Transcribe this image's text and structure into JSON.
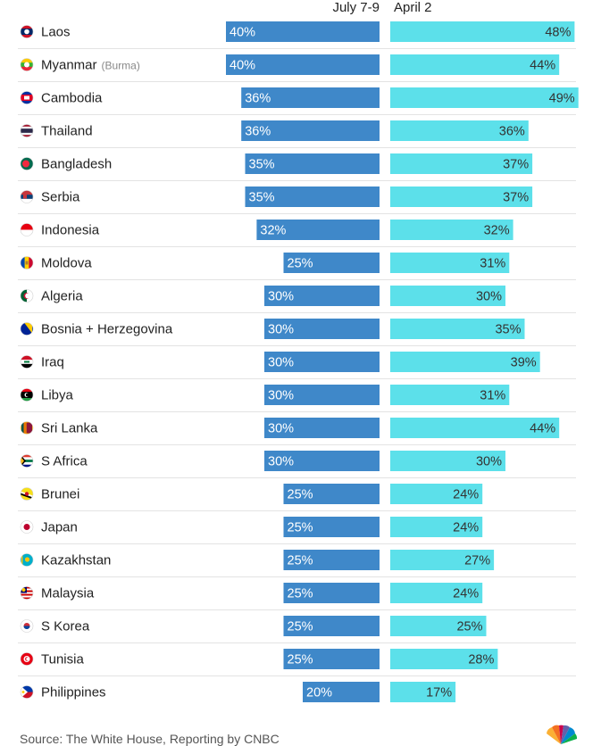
{
  "chart_data": {
    "type": "bar",
    "series": [
      {
        "name": "July 7-9",
        "values": [
          40,
          40,
          36,
          36,
          35,
          35,
          32,
          25,
          30,
          30,
          30,
          30,
          30,
          30,
          25,
          25,
          25,
          25,
          25,
          25,
          20
        ],
        "color": "#3f88c9"
      },
      {
        "name": "April 2",
        "values": [
          48,
          44,
          49,
          36,
          37,
          37,
          32,
          31,
          30,
          35,
          39,
          31,
          44,
          30,
          24,
          24,
          27,
          24,
          25,
          28,
          17
        ],
        "color": "#5ce0ea"
      }
    ],
    "categories": [
      "Laos",
      "Myanmar",
      "Cambodia",
      "Thailand",
      "Bangladesh",
      "Serbia",
      "Indonesia",
      "Moldova",
      "Algeria",
      "Bosnia + Herzegovina",
      "Iraq",
      "Libya",
      "Sri Lanka",
      "S Africa",
      "Brunei",
      "Japan",
      "Kazakhstan",
      "Malaysia",
      "S Korea",
      "Tunisia",
      "Philippines"
    ],
    "category_notes": {
      "Myanmar": "(Burma)"
    },
    "value_suffix": "%",
    "xlim": [
      0,
      50
    ],
    "grid": false,
    "legend_placement": "top",
    "layout": "mirrored-horizontal-bars"
  },
  "flags": {
    "Laos": "laos-flag-icon",
    "Myanmar": "myanmar-flag-icon",
    "Cambodia": "cambodia-flag-icon",
    "Thailand": "thailand-flag-icon",
    "Bangladesh": "bangladesh-flag-icon",
    "Serbia": "serbia-flag-icon",
    "Indonesia": "indonesia-flag-icon",
    "Moldova": "moldova-flag-icon",
    "Algeria": "algeria-flag-icon",
    "Bosnia + Herzegovina": "bosnia-herzegovina-flag-icon",
    "Iraq": "iraq-flag-icon",
    "Libya": "libya-flag-icon",
    "Sri Lanka": "sri-lanka-flag-icon",
    "S Africa": "south-africa-flag-icon",
    "Brunei": "brunei-flag-icon",
    "Japan": "japan-flag-icon",
    "Kazakhstan": "kazakhstan-flag-icon",
    "Malaysia": "malaysia-flag-icon",
    "S Korea": "south-korea-flag-icon",
    "Tunisia": "tunisia-flag-icon",
    "Philippines": "philippines-flag-icon"
  },
  "source": "Source: The White House, Reporting by CNBC",
  "logo_icon": "cnbc-peacock-logo-icon"
}
